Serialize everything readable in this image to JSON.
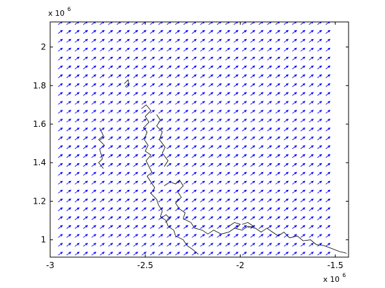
{
  "chart_data": {
    "type": "quiver",
    "title": "",
    "xlabel": "",
    "ylabel": "",
    "xlim": [
      -3000000,
      -1430000
    ],
    "ylim": [
      910000,
      2130000
    ],
    "x_ticks": [
      {
        "value": -3000000,
        "label": "-3"
      },
      {
        "value": -2500000,
        "label": "-2.5"
      },
      {
        "value": -2000000,
        "label": "-2"
      },
      {
        "value": -1500000,
        "label": "-1.5"
      }
    ],
    "y_ticks": [
      {
        "value": 1000000,
        "label": "1"
      },
      {
        "value": 1200000,
        "label": "1.2"
      },
      {
        "value": 1400000,
        "label": "1.4"
      },
      {
        "value": 1600000,
        "label": "1.6"
      },
      {
        "value": 1800000,
        "label": "1.8"
      },
      {
        "value": 2000000,
        "label": "2"
      }
    ],
    "x_exponent": {
      "base": "x 10",
      "power": "6"
    },
    "y_exponent": {
      "base": "x 10",
      "power": "6"
    },
    "grid": false,
    "quiver": {
      "x_start": -2958000,
      "x_step": 44000,
      "x_count": 33,
      "y_start": 920000,
      "y_step": 46000,
      "y_count": 27,
      "u": 22000,
      "v": 16000,
      "color": "#0000ff"
    },
    "coastline_color": "#000000",
    "coastline": [
      [
        [
          -2740000,
          1580000
        ],
        [
          -2720000,
          1540000
        ],
        [
          -2745000,
          1520000
        ],
        [
          -2715000,
          1490000
        ],
        [
          -2740000,
          1470000
        ],
        [
          -2725000,
          1420000
        ],
        [
          -2745000,
          1400000
        ],
        [
          -2720000,
          1370000
        ]
      ],
      [
        [
          -2610000,
          1810000
        ],
        [
          -2590000,
          1830000
        ],
        [
          -2585000,
          1800000
        ],
        [
          -2600000,
          1790000
        ]
      ],
      [
        [
          -2520000,
          1680000
        ],
        [
          -2495000,
          1700000
        ],
        [
          -2470000,
          1670000
        ],
        [
          -2500000,
          1640000
        ],
        [
          -2480000,
          1610000
        ],
        [
          -2510000,
          1580000
        ],
        [
          -2490000,
          1560000
        ],
        [
          -2505000,
          1520000
        ],
        [
          -2485000,
          1490000
        ],
        [
          -2500000,
          1460000
        ],
        [
          -2470000,
          1440000
        ],
        [
          -2495000,
          1410000
        ],
        [
          -2480000,
          1380000
        ],
        [
          -2465000,
          1350000
        ],
        [
          -2490000,
          1330000
        ],
        [
          -2470000,
          1300000
        ],
        [
          -2450000,
          1270000
        ],
        [
          -2470000,
          1240000
        ],
        [
          -2440000,
          1210000
        ],
        [
          -2430000,
          1180000
        ],
        [
          -2410000,
          1150000
        ],
        [
          -2420000,
          1120000
        ],
        [
          -2390000,
          1100000
        ],
        [
          -2380000,
          1070000
        ],
        [
          -2350000,
          1050000
        ],
        [
          -2340000,
          1020000
        ],
        [
          -2300000,
          1000000
        ],
        [
          -2280000,
          970000
        ],
        [
          -2250000,
          950000
        ],
        [
          -2220000,
          925000
        ]
      ],
      [
        [
          -2440000,
          1650000
        ],
        [
          -2420000,
          1620000
        ],
        [
          -2440000,
          1590000
        ],
        [
          -2410000,
          1560000
        ],
        [
          -2425000,
          1520000
        ],
        [
          -2395000,
          1480000
        ],
        [
          -2410000,
          1450000
        ],
        [
          -2380000,
          1410000
        ],
        [
          -2400000,
          1380000
        ]
      ],
      [
        [
          -2400000,
          1280000
        ],
        [
          -2370000,
          1300000
        ],
        [
          -2340000,
          1290000
        ],
        [
          -2320000,
          1310000
        ],
        [
          -2300000,
          1280000
        ],
        [
          -2330000,
          1250000
        ],
        [
          -2310000,
          1220000
        ],
        [
          -2340000,
          1190000
        ],
        [
          -2320000,
          1160000
        ],
        [
          -2290000,
          1140000
        ],
        [
          -2300000,
          1110000
        ],
        [
          -2260000,
          1090000
        ],
        [
          -2240000,
          1060000
        ],
        [
          -2200000,
          1050000
        ],
        [
          -2170000,
          1030000
        ],
        [
          -2140000,
          1050000
        ],
        [
          -2100000,
          1030000
        ],
        [
          -2060000,
          1040000
        ],
        [
          -2030000,
          1060000
        ],
        [
          -1990000,
          1050000
        ],
        [
          -1960000,
          1070000
        ],
        [
          -1920000,
          1060000
        ],
        [
          -1890000,
          1040000
        ],
        [
          -1860000,
          1060000
        ],
        [
          -1830000,
          1040000
        ],
        [
          -1800000,
          1020000
        ],
        [
          -1770000,
          1040000
        ],
        [
          -1740000,
          1010000
        ],
        [
          -1700000,
          1020000
        ],
        [
          -1670000,
          995000
        ],
        [
          -1630000,
          1000000
        ],
        [
          -1600000,
          975000
        ],
        [
          -1560000,
          970000
        ],
        [
          -1520000,
          955000
        ],
        [
          -1480000,
          940000
        ],
        [
          -1440000,
          930000
        ]
      ],
      [
        [
          -2420000,
          1110000
        ],
        [
          -2390000,
          1130000
        ],
        [
          -2370000,
          1110000
        ],
        [
          -2395000,
          1090000
        ]
      ],
      [
        [
          -2060000,
          1070000
        ],
        [
          -2030000,
          1090000
        ],
        [
          -2000000,
          1080000
        ],
        [
          -2020000,
          1060000
        ]
      ],
      [
        [
          -1990000,
          1080000
        ],
        [
          -1960000,
          1090000
        ],
        [
          -1930000,
          1070000
        ],
        [
          -1960000,
          1065000
        ]
      ]
    ]
  }
}
